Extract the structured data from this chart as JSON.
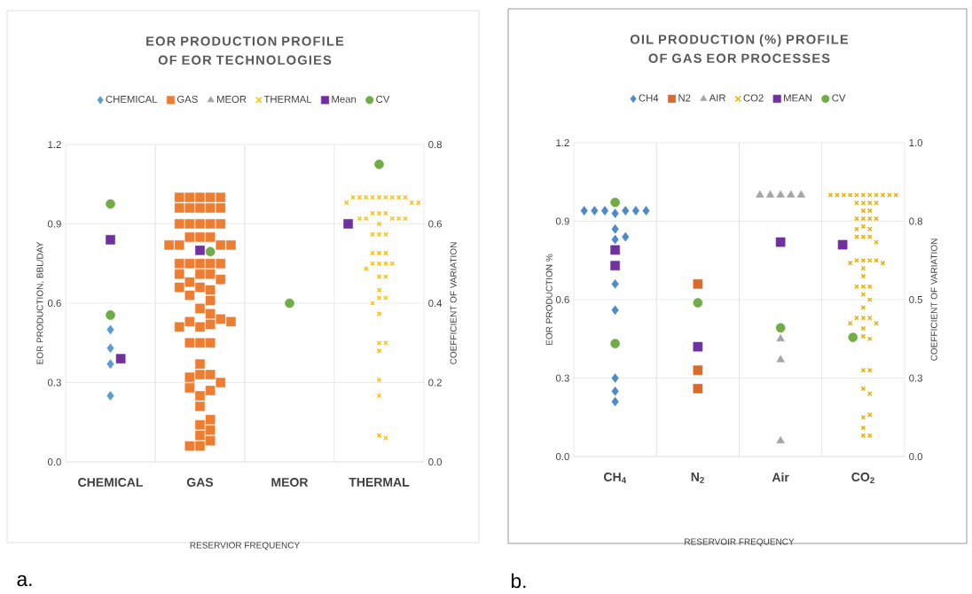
{
  "chart_data": [
    {
      "type": "scatter",
      "title": "EOR PRODUCTION PROFILE OF EOR TECHNOLOGIES",
      "xlabel": "RESERVIOR FREQUENCY",
      "ylabel": "EOR PRODUCTION, BBL/DAY",
      "y2label": "COEFFICIENT OF VARIATION",
      "categories": [
        "CHEMICAL",
        "GAS",
        "MEOR",
        "THERMAL"
      ],
      "ylim": [
        0,
        1.2
      ],
      "yticks": [
        {
          "value": 0,
          "label": "0.0"
        },
        0.3,
        0.6,
        0.9,
        1.2
      ],
      "y2lim": [
        0,
        0.8
      ],
      "y2ticks": [
        {
          "value": 0,
          "label": "0.0"
        },
        0.2,
        0.4,
        0.6,
        0.8
      ],
      "grid": "y",
      "legend": "top",
      "annotations": [
        "a."
      ],
      "series": [
        {
          "name": "CHEMICAL",
          "color": "#5b9bd5",
          "marker": "diamond",
          "x": [
            "CHEMICAL",
            "CHEMICAL",
            "CHEMICAL",
            "CHEMICAL"
          ],
          "values": [
            0.25,
            0.37,
            0.43,
            0.5
          ]
        },
        {
          "name": "GAS",
          "color": "#ed7d31",
          "marker": "square",
          "x": [
            "GAS",
            "GAS",
            "GAS",
            "GAS",
            "GAS",
            "GAS",
            "GAS",
            "GAS",
            "GAS",
            "GAS",
            "GAS",
            "GAS",
            "GAS",
            "GAS",
            "GAS",
            "GAS",
            "GAS",
            "GAS",
            "GAS",
            "GAS",
            "GAS",
            "GAS",
            "GAS",
            "GAS",
            "GAS",
            "GAS",
            "GAS",
            "GAS",
            "GAS",
            "GAS",
            "GAS",
            "GAS",
            "GAS",
            "GAS",
            "GAS",
            "GAS",
            "GAS",
            "GAS",
            "GAS",
            "GAS",
            "GAS",
            "GAS",
            "GAS",
            "GAS",
            "GAS",
            "GAS",
            "GAS",
            "GAS",
            "GAS",
            "GAS",
            "GAS",
            "GAS",
            "GAS",
            "GAS",
            "GAS",
            "GAS",
            "GAS",
            "GAS",
            "GAS",
            "GAS",
            "GAS",
            "GAS",
            "GAS",
            "GAS"
          ],
          "values": [
            1.0,
            1.0,
            1.0,
            1.0,
            1.0,
            0.96,
            0.96,
            0.96,
            0.96,
            0.96,
            0.9,
            0.9,
            0.9,
            0.9,
            0.9,
            0.85,
            0.85,
            0.85,
            0.82,
            0.82,
            0.82,
            0.82,
            0.75,
            0.75,
            0.75,
            0.75,
            0.75,
            0.71,
            0.71,
            0.66,
            0.68,
            0.69,
            0.71,
            0.58,
            0.61,
            0.63,
            0.65,
            0.66,
            0.51,
            0.52,
            0.53,
            0.54,
            0.56,
            0.51,
            0.53,
            0.45,
            0.45,
            0.45,
            0.37,
            0.33,
            0.33,
            0.21,
            0.25,
            0.27,
            0.28,
            0.3,
            0.32,
            0.06,
            0.1,
            0.08,
            0.12,
            0.14,
            0.16,
            0.06
          ]
        },
        {
          "name": "MEOR",
          "color": "#a5a5a5",
          "marker": "triangle",
          "values": [
            null,
            null,
            null,
            null
          ]
        },
        {
          "name": "THERMAL",
          "color": "#ffc000",
          "marker": "cross",
          "x": [
            "THERMAL",
            "THERMAL",
            "THERMAL",
            "THERMAL",
            "THERMAL",
            "THERMAL",
            "THERMAL",
            "THERMAL",
            "THERMAL",
            "THERMAL",
            "THERMAL",
            "THERMAL",
            "THERMAL",
            "THERMAL",
            "THERMAL",
            "THERMAL",
            "THERMAL",
            "THERMAL",
            "THERMAL",
            "THERMAL",
            "THERMAL",
            "THERMAL",
            "THERMAL",
            "THERMAL",
            "THERMAL",
            "THERMAL",
            "THERMAL",
            "THERMAL",
            "THERMAL",
            "THERMAL",
            "THERMAL",
            "THERMAL",
            "THERMAL",
            "THERMAL",
            "THERMAL",
            "THERMAL",
            "THERMAL",
            "THERMAL",
            "THERMAL",
            "THERMAL",
            "THERMAL",
            "THERMAL",
            "THERMAL",
            "THERMAL",
            "THERMAL",
            "THERMAL"
          ],
          "values": [
            1.0,
            1.0,
            1.0,
            1.0,
            1.0,
            1.0,
            1.0,
            1.0,
            1.0,
            0.98,
            0.98,
            0.98,
            0.94,
            0.94,
            0.94,
            0.92,
            0.92,
            0.92,
            0.92,
            0.92,
            0.9,
            0.86,
            0.86,
            0.86,
            0.79,
            0.79,
            0.79,
            0.75,
            0.75,
            0.75,
            0.75,
            0.73,
            0.7,
            0.7,
            0.65,
            0.62,
            0.62,
            0.6,
            0.56,
            0.45,
            0.45,
            0.42,
            0.31,
            0.25,
            0.1,
            0.09
          ]
        },
        {
          "name": "Mean",
          "color": "#7030a0",
          "marker": "square",
          "x": [
            "CHEMICAL",
            "CHEMICAL",
            "GAS",
            "THERMAL"
          ],
          "values": [
            0.84,
            0.39,
            0.8,
            0.9
          ]
        },
        {
          "name": "CV",
          "color": "#70ad47",
          "marker": "circle",
          "axis": "y2",
          "x": [
            "CHEMICAL",
            "CHEMICAL",
            "GAS",
            "MEOR",
            "THERMAL"
          ],
          "values": [
            0.65,
            0.37,
            0.53,
            0.4,
            0.75
          ]
        }
      ]
    },
    {
      "type": "scatter",
      "title": "OIL PRODUCTION (%) PROFILE OF GAS EOR PROCESSES",
      "xlabel": "RESERVOIR  FREQUENCY",
      "ylabel": "EOR PRODUCTION %",
      "y2label": "COEFFICIENT OF VARIATION",
      "categories": [
        "CH$_{4}$",
        "N$_{2}$",
        "Air",
        "CO$_{2}$"
      ],
      "ylim": [
        0,
        1.2
      ],
      "yticks": [
        {
          "value": 0,
          "label": "0.0"
        },
        0.3,
        0.6,
        0.9,
        1.2
      ],
      "y2lim": [
        0,
        1
      ],
      "y2ticks": [
        {
          "value": 0,
          "label": "0.0"
        },
        {
          "value": 0.25,
          "label": "0.3"
        },
        0.5,
        {
          "value": 0.75,
          "label": "0.8"
        },
        {
          "value": 1,
          "label": "1.0"
        }
      ],
      "grid": "y",
      "legend": "top",
      "annotations": [
        "b."
      ],
      "series": [
        {
          "name": "CH4",
          "color": "#4e8ac8",
          "marker": "diamond",
          "x": [
            "CH$_{4}$",
            "CH$_{4}$",
            "CH$_{4}$",
            "CH$_{4}$",
            "CH$_{4}$",
            "CH$_{4}$",
            "CH$_{4}$",
            "CH$_{4}$",
            "CH$_{4}$",
            "CH$_{4}$",
            "CH$_{4}$",
            "CH$_{4}$",
            "CH$_{4}$",
            "CH$_{4}$",
            "CH$_{4}$"
          ],
          "values": [
            0.93,
            0.94,
            0.94,
            0.94,
            0.94,
            0.94,
            0.94,
            0.87,
            0.83,
            0.84,
            0.66,
            0.56,
            0.3,
            0.21,
            0.25
          ]
        },
        {
          "name": "N2",
          "color": "#d86b2b",
          "marker": "square",
          "x": [
            "N$_{2}$",
            "N$_{2}$",
            "N$_{2}$"
          ],
          "values": [
            0.66,
            0.33,
            0.26
          ]
        },
        {
          "name": "AIR",
          "color": "#a5a5a5",
          "marker": "triangle",
          "x": [
            "Air",
            "Air",
            "Air",
            "Air",
            "Air",
            "Air",
            "Air",
            "Air"
          ],
          "values": [
            1.0,
            1.0,
            1.0,
            1.0,
            1.0,
            0.45,
            0.37,
            0.06
          ]
        },
        {
          "name": "CO2",
          "color": "#e8b000",
          "marker": "cross",
          "x": [
            "CO$_{2}$",
            "CO$_{2}$",
            "CO$_{2}$",
            "CO$_{2}$",
            "CO$_{2}$",
            "CO$_{2}$",
            "CO$_{2}$",
            "CO$_{2}$",
            "CO$_{2}$",
            "CO$_{2}$",
            "CO$_{2}$",
            "CO$_{2}$",
            "CO$_{2}$",
            "CO$_{2}$",
            "CO$_{2}$",
            "CO$_{2}$",
            "CO$_{2}$",
            "CO$_{2}$",
            "CO$_{2}$",
            "CO$_{2}$",
            "CO$_{2}$",
            "CO$_{2}$",
            "CO$_{2}$",
            "CO$_{2}$",
            "CO$_{2}$",
            "CO$_{2}$",
            "CO$_{2}$",
            "CO$_{2}$",
            "CO$_{2}$",
            "CO$_{2}$",
            "CO$_{2}$",
            "CO$_{2}$",
            "CO$_{2}$",
            "CO$_{2}$",
            "CO$_{2}$",
            "CO$_{2}$",
            "CO$_{2}$",
            "CO$_{2}$",
            "CO$_{2}$",
            "CO$_{2}$",
            "CO$_{2}$",
            "CO$_{2}$",
            "CO$_{2}$",
            "CO$_{2}$",
            "CO$_{2}$",
            "CO$_{2}$",
            "CO$_{2}$",
            "CO$_{2}$",
            "CO$_{2}$",
            "CO$_{2}$",
            "CO$_{2}$",
            "CO$_{2}$",
            "CO$_{2}$",
            "CO$_{2}$",
            "CO$_{2}$",
            "CO$_{2}$",
            "CO$_{2}$",
            "CO$_{2}$",
            "CO$_{2}$"
          ],
          "values": [
            1.0,
            1.0,
            1.0,
            1.0,
            1.0,
            1.0,
            1.0,
            1.0,
            1.0,
            1.0,
            1.0,
            0.97,
            0.97,
            0.97,
            0.97,
            0.94,
            0.94,
            0.91,
            0.91,
            0.91,
            0.91,
            0.88,
            0.87,
            0.87,
            0.84,
            0.84,
            0.84,
            0.82,
            0.75,
            0.75,
            0.75,
            0.75,
            0.74,
            0.74,
            0.72,
            0.69,
            0.65,
            0.65,
            0.65,
            0.62,
            0.6,
            0.57,
            0.53,
            0.53,
            0.53,
            0.51,
            0.51,
            0.49,
            0.46,
            0.45,
            0.33,
            0.33,
            0.26,
            0.24,
            0.15,
            0.16,
            0.11,
            0.08,
            0.08
          ]
        },
        {
          "name": "MEAN",
          "color": "#7030a0",
          "marker": "square",
          "x": [
            "CH$_{4}$",
            "CH$_{4}$",
            "N$_{2}$",
            "Air",
            "CO$_{2}$"
          ],
          "values": [
            0.79,
            0.73,
            0.42,
            0.82,
            0.81
          ]
        },
        {
          "name": "CV",
          "color": "#70ad47",
          "marker": "circle",
          "axis": "y2",
          "x": [
            "CH$_{4}$",
            "CH$_{4}$",
            "N$_{2}$",
            "Air",
            "CO$_{2}$"
          ],
          "values": [
            0.81,
            0.36,
            0.49,
            0.41,
            0.38
          ]
        }
      ]
    }
  ]
}
